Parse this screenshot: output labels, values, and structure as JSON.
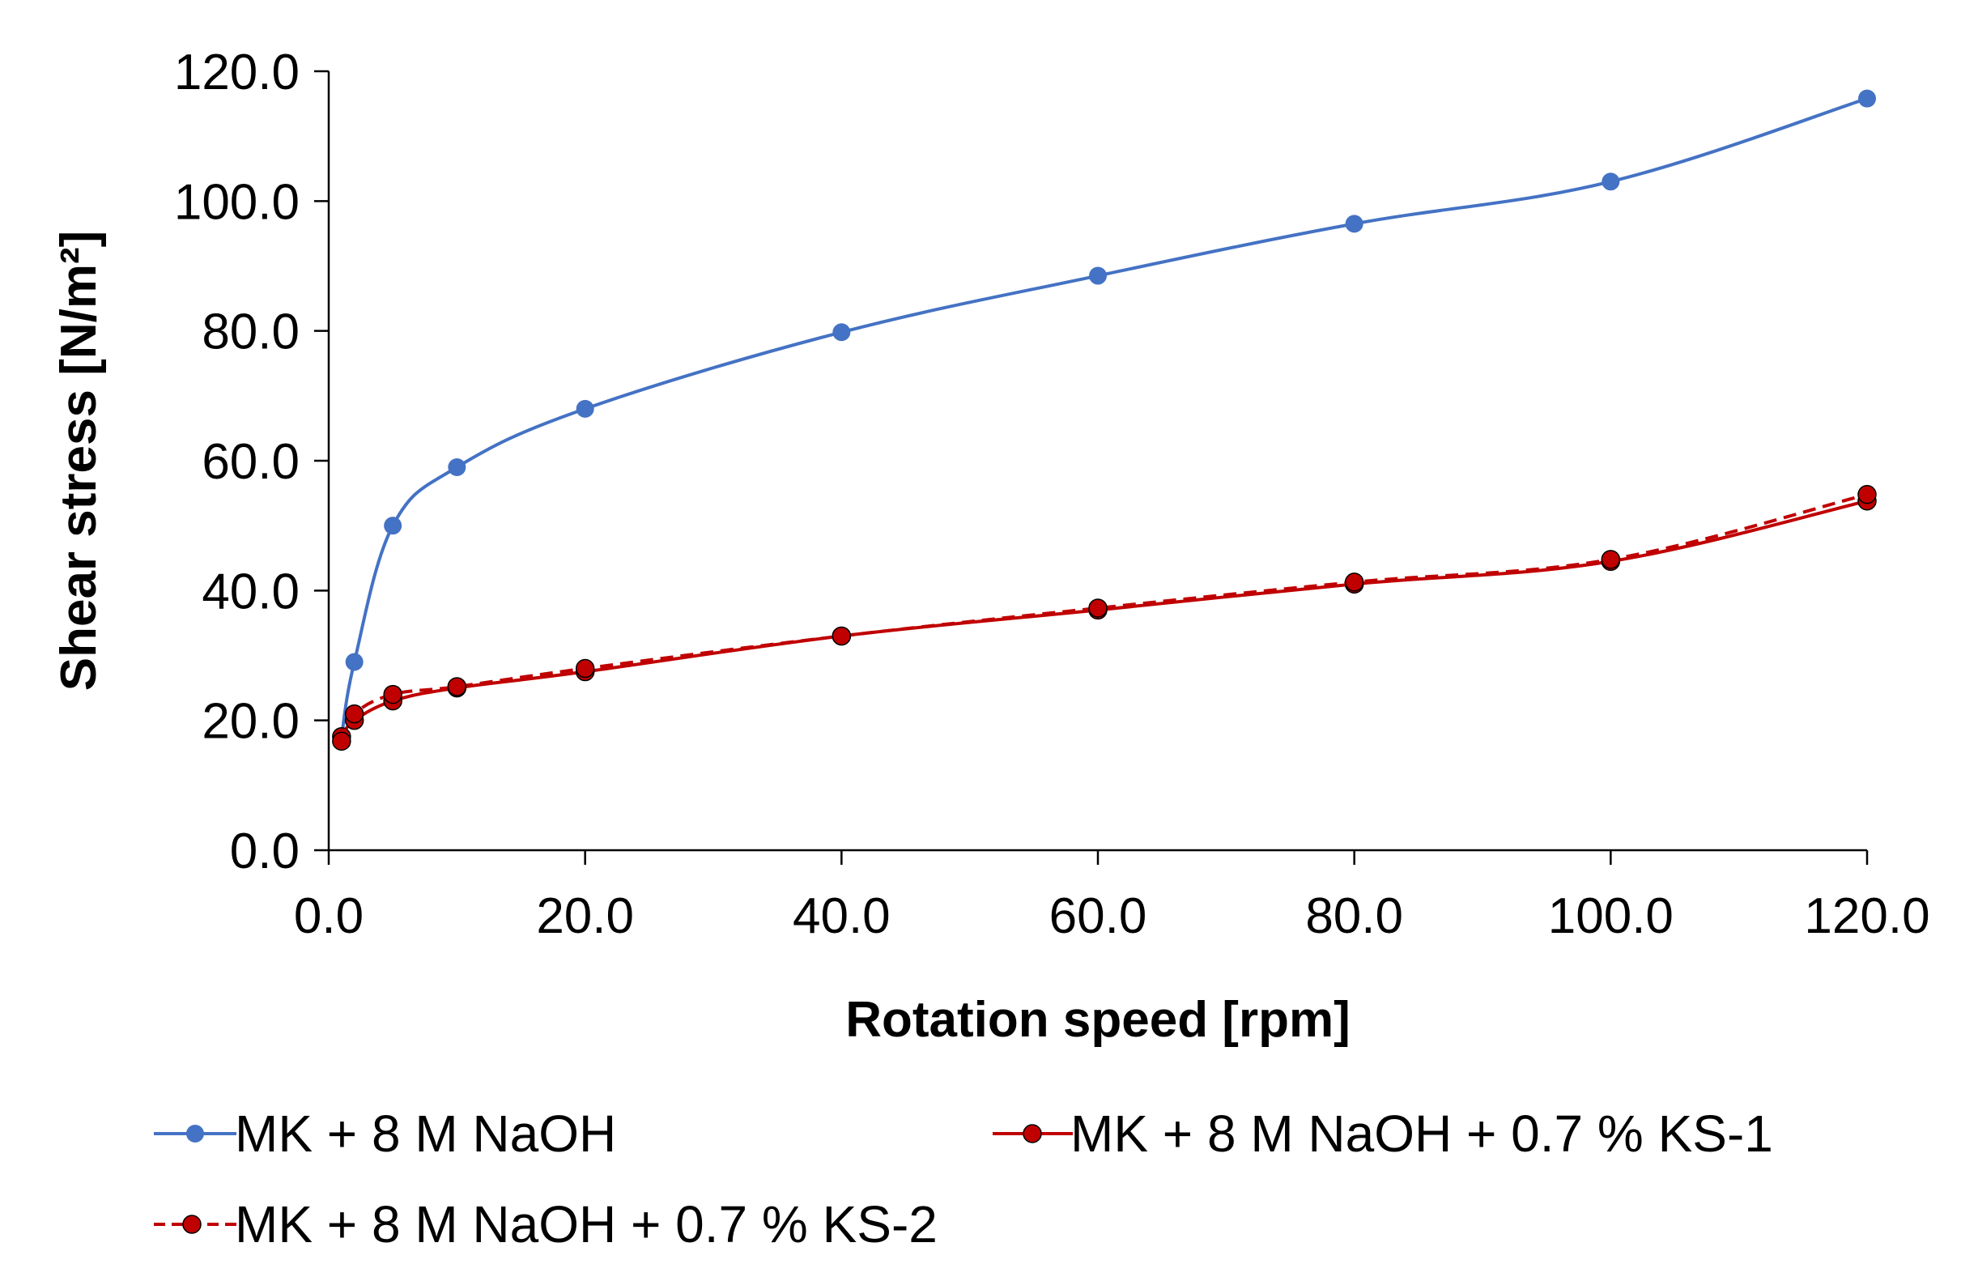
{
  "chart_data": {
    "type": "line",
    "title": "",
    "xlabel": "Rotation speed [rpm]",
    "ylabel": "Shear stress [N/m²]",
    "xlim": [
      0,
      120
    ],
    "ylim": [
      0,
      120
    ],
    "x_ticks": [
      "0.0",
      "20.0",
      "40.0",
      "60.0",
      "80.0",
      "100.0",
      "120.0"
    ],
    "y_ticks": [
      "0.0",
      "20.0",
      "40.0",
      "60.0",
      "80.0",
      "100.0",
      "120.0"
    ],
    "x_tick_values": [
      0,
      20,
      40,
      60,
      80,
      100,
      120
    ],
    "y_tick_values": [
      0,
      20,
      40,
      60,
      80,
      100,
      120
    ],
    "grid": false,
    "legend_position": "bottom",
    "x": [
      1,
      2,
      5,
      10,
      20,
      40,
      60,
      80,
      100,
      120
    ],
    "series": [
      {
        "name": "MK + 8 M NaOH",
        "color": "#4472C4",
        "line_style": "solid",
        "marker": "circle",
        "values": [
          17.5,
          29.0,
          50.0,
          59.0,
          68.0,
          79.8,
          88.5,
          96.5,
          103.0,
          115.8
        ]
      },
      {
        "name": "MK + 8 M NaOH + 0.7 % KS-1",
        "color": "#C00000",
        "line_style": "solid",
        "marker": "circle",
        "values": [
          17.5,
          20.0,
          23.0,
          25.0,
          27.5,
          33.0,
          37.0,
          41.0,
          44.5,
          53.8
        ]
      },
      {
        "name": "MK + 8 M NaOH + 0.7 % KS-2",
        "color": "#C00000",
        "line_style": "dashed",
        "marker": "circle",
        "values": [
          16.8,
          21.0,
          24.0,
          25.2,
          28.0,
          33.0,
          37.3,
          41.3,
          44.8,
          54.8
        ]
      }
    ]
  }
}
